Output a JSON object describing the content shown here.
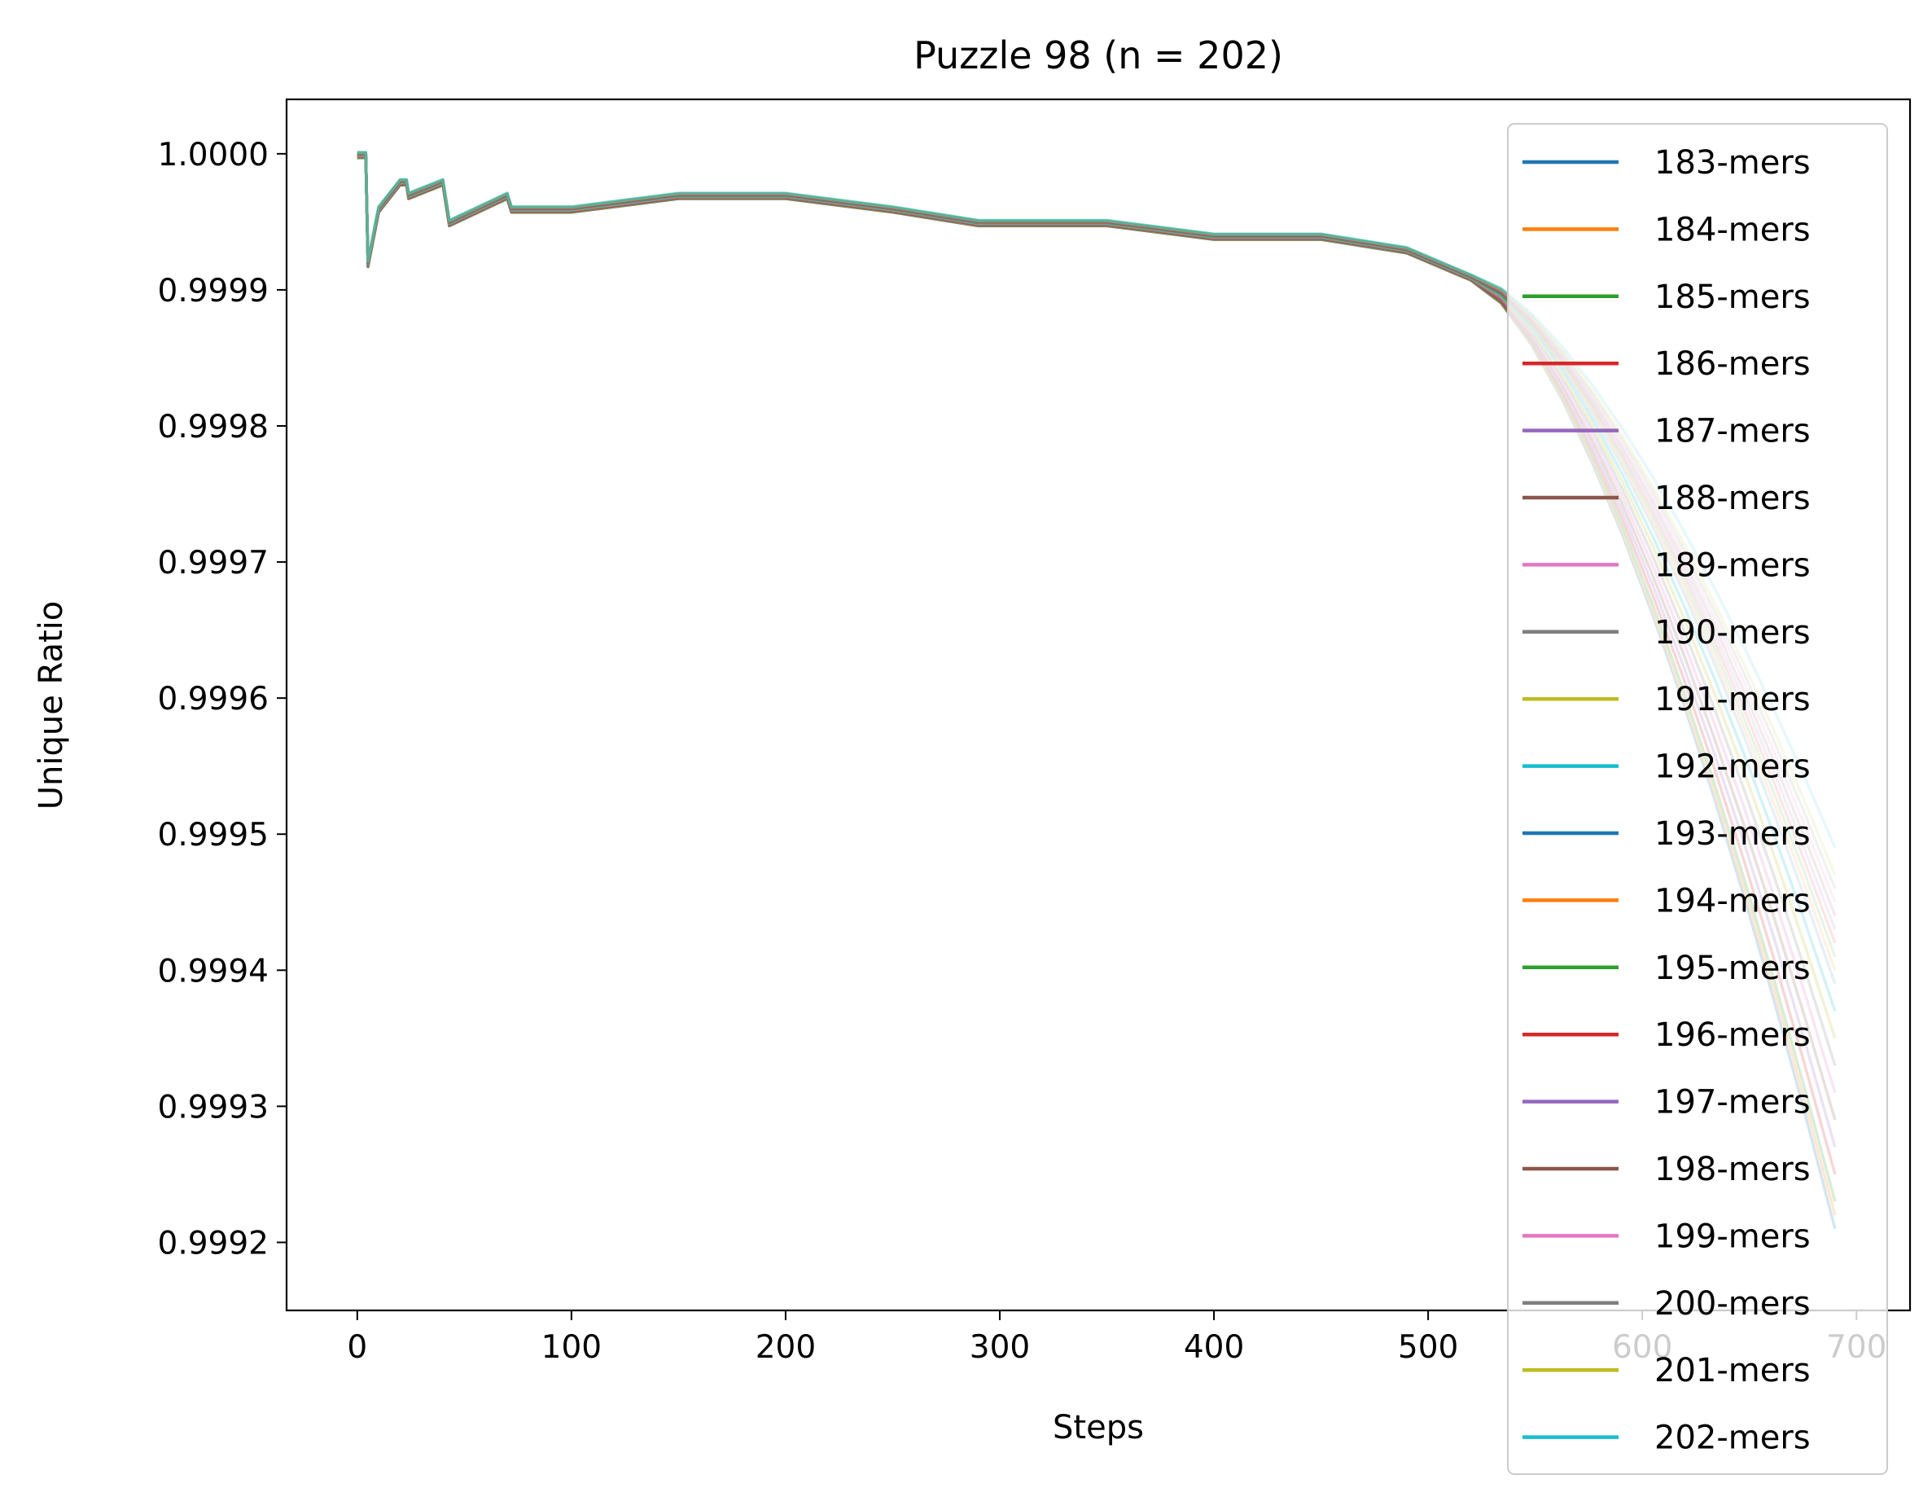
{
  "chart_data": {
    "type": "line",
    "title": "Puzzle 98 (n = 202)",
    "xlabel": "Steps",
    "ylabel": "Unique Ratio",
    "xlim": [
      -33,
      725
    ],
    "ylim": [
      0.99915,
      1.00004
    ],
    "xticks": [
      0,
      100,
      200,
      300,
      400,
      500,
      600,
      700
    ],
    "xtick_labels": [
      "0",
      "100",
      "200",
      "300",
      "400",
      "500",
      "600",
      "700"
    ],
    "yticks": [
      0.9992,
      0.9993,
      0.9994,
      0.9995,
      0.9996,
      0.9997,
      0.9998,
      0.9999,
      1.0
    ],
    "ytick_labels": [
      "0.9992",
      "0.9993",
      "0.9994",
      "0.9995",
      "0.9996",
      "0.9997",
      "0.9998",
      "0.9999",
      "1.0000"
    ],
    "grid": false,
    "legend_position": "right, overlapping plot",
    "shape": {
      "start_x": 0,
      "end_x": 690,
      "common_points": [
        [
          0,
          1.0
        ],
        [
          4,
          1.0
        ],
        [
          5,
          0.99992
        ],
        [
          10,
          0.99996
        ],
        [
          20,
          0.99998
        ],
        [
          23,
          0.99998
        ],
        [
          24,
          0.99997
        ],
        [
          40,
          0.99998
        ],
        [
          43,
          0.99995
        ],
        [
          70,
          0.99997
        ],
        [
          72,
          0.99996
        ],
        [
          100,
          0.99996
        ],
        [
          150,
          0.99997
        ],
        [
          200,
          0.99997
        ],
        [
          250,
          0.99996
        ],
        [
          290,
          0.99995
        ],
        [
          350,
          0.99995
        ],
        [
          400,
          0.99994
        ],
        [
          450,
          0.99994
        ],
        [
          490,
          0.99993
        ],
        [
          520,
          0.99991
        ]
      ],
      "first_x": [
        0,
        0,
        0,
        0,
        0,
        0,
        0,
        0,
        0,
        0,
        0,
        0,
        0,
        0,
        0,
        0,
        0,
        0,
        0,
        0
      ],
      "offsets": [
        -3e-06,
        -2.7e-06,
        -2.4e-06,
        -2.1e-06,
        -1.9e-06,
        -1.7e-06,
        -1.5e-06,
        -1.3e-06,
        -1.1e-06,
        -9e-07,
        -7e-07,
        -5e-07,
        -3e-07,
        -1e-07,
        1e-07,
        3e-07,
        5e-07,
        7e-07,
        9e-07,
        1.1e-06
      ],
      "end_values": [
        0.99921,
        0.99922,
        0.99923,
        0.99925,
        0.99927,
        0.99929,
        0.99931,
        0.99933,
        0.99935,
        0.99937,
        0.99939,
        0.9994,
        0.99941,
        0.99942,
        0.99943,
        0.99944,
        0.99945,
        0.99946,
        0.99947,
        0.99949
      ]
    },
    "series": [
      {
        "name": "183-mers",
        "color": "#1f77b4"
      },
      {
        "name": "184-mers",
        "color": "#ff7f0e"
      },
      {
        "name": "185-mers",
        "color": "#2ca02c"
      },
      {
        "name": "186-mers",
        "color": "#d62728"
      },
      {
        "name": "187-mers",
        "color": "#9467bd"
      },
      {
        "name": "188-mers",
        "color": "#8c564b"
      },
      {
        "name": "189-mers",
        "color": "#e377c2"
      },
      {
        "name": "190-mers",
        "color": "#7f7f7f"
      },
      {
        "name": "191-mers",
        "color": "#bcbd22"
      },
      {
        "name": "192-mers",
        "color": "#17becf"
      },
      {
        "name": "193-mers",
        "color": "#1f77b4"
      },
      {
        "name": "194-mers",
        "color": "#ff7f0e"
      },
      {
        "name": "195-mers",
        "color": "#2ca02c"
      },
      {
        "name": "196-mers",
        "color": "#d62728"
      },
      {
        "name": "197-mers",
        "color": "#9467bd"
      },
      {
        "name": "198-mers",
        "color": "#8c564b"
      },
      {
        "name": "199-mers",
        "color": "#e377c2"
      },
      {
        "name": "200-mers",
        "color": "#7f7f7f"
      },
      {
        "name": "201-mers",
        "color": "#bcbd22"
      },
      {
        "name": "202-mers",
        "color": "#17becf"
      }
    ]
  }
}
